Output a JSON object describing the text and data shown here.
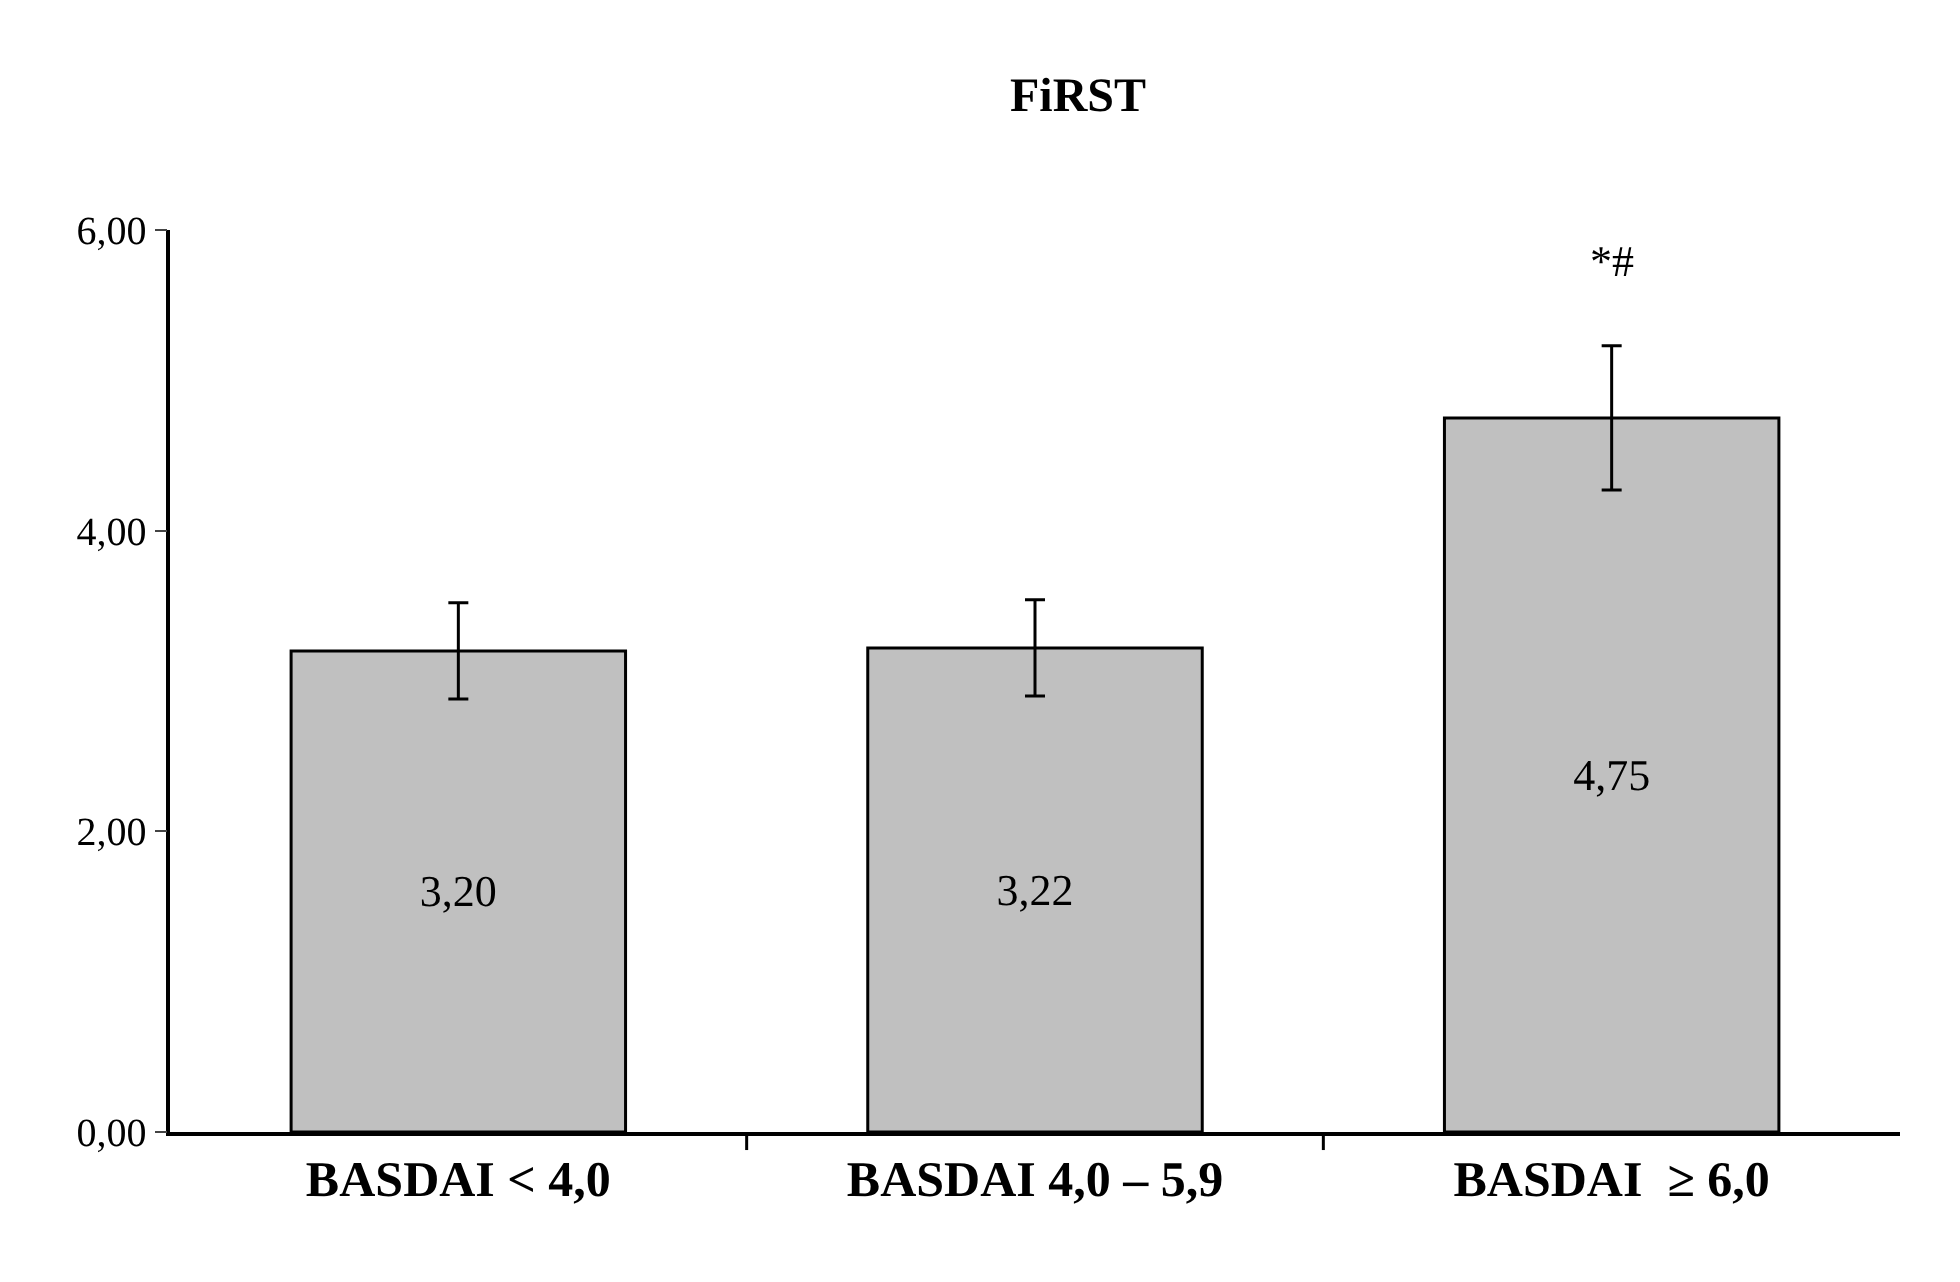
{
  "chart_data": {
    "type": "bar",
    "title": "FiRST",
    "categories": [
      "BASDAI < 4,0",
      "BASDAI 4,0 – 5,9",
      "BASDAI  ≥ 6,0"
    ],
    "values": [
      3.2,
      3.22,
      4.75
    ],
    "value_labels": [
      "3,20",
      "3,22",
      "4,75"
    ],
    "color": "#c0c0c0",
    "errors": [
      0.32,
      0.32,
      0.48
    ],
    "ylim": [
      0,
      6
    ],
    "yticks": [
      {
        "value": 0,
        "label": "0,00"
      },
      {
        "value": 2,
        "label": "2,00"
      },
      {
        "value": 4,
        "label": "4,00"
      },
      {
        "value": 6,
        "label": "6,00"
      }
    ],
    "annotations": [
      "*#"
    ],
    "grid": false
  }
}
